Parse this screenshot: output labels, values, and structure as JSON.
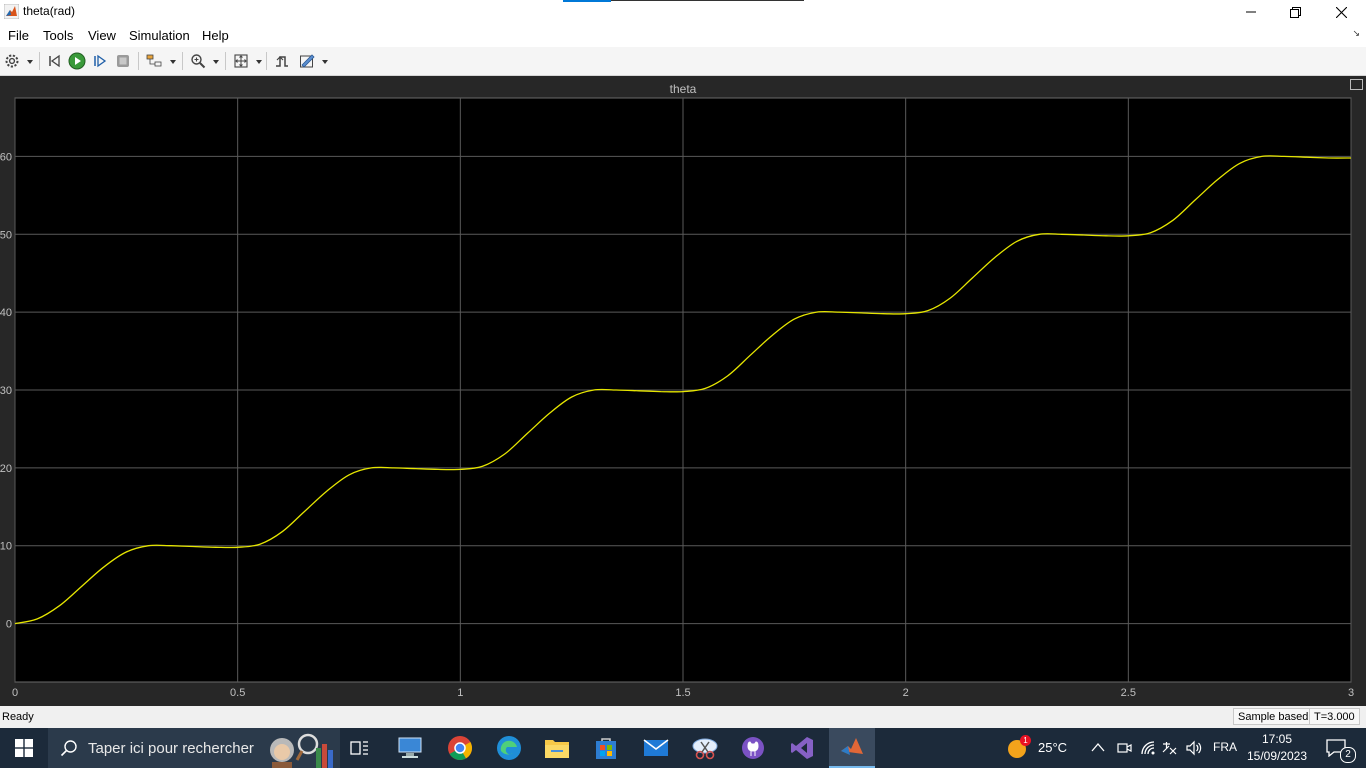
{
  "window": {
    "title": "theta(rad)"
  },
  "menu": {
    "items": [
      "File",
      "Tools",
      "View",
      "Simulation",
      "Help"
    ]
  },
  "chart_data": {
    "type": "line",
    "title": "theta",
    "xlabel": "",
    "ylabel": "",
    "xlim": [
      0,
      3
    ],
    "ylim": [
      -7.5,
      67.5
    ],
    "xticks": [
      0,
      0.5,
      1,
      1.5,
      2,
      2.5,
      3
    ],
    "xtick_labels": [
      "0",
      "0.5",
      "1",
      "1.5",
      "2",
      "2.5",
      "3"
    ],
    "yticks": [
      0,
      10,
      20,
      30,
      40,
      50,
      60
    ],
    "ytick_labels": [
      "0",
      "10",
      "20",
      "30",
      "40",
      "50",
      "60"
    ],
    "grid": true,
    "background": "#000000",
    "gridcolor": "#5a5a5a",
    "series": [
      {
        "color": "#e6e600",
        "x": [
          0,
          0.05,
          0.1,
          0.15,
          0.2,
          0.25,
          0.3,
          0.35,
          0.4,
          0.45,
          0.5,
          0.55,
          0.6,
          0.65,
          0.7,
          0.75,
          0.8,
          0.85,
          0.9,
          0.95,
          1.0,
          1.05,
          1.1,
          1.15,
          1.2,
          1.25,
          1.3,
          1.35,
          1.4,
          1.45,
          1.5,
          1.55,
          1.6,
          1.65,
          1.7,
          1.75,
          1.8,
          1.85,
          1.9,
          1.95,
          2.0,
          2.05,
          2.1,
          2.15,
          2.2,
          2.25,
          2.3,
          2.35,
          2.4,
          2.45,
          2.5,
          2.55,
          2.6,
          2.65,
          2.7,
          2.75,
          2.8,
          2.85,
          2.9,
          2.95,
          3.0
        ],
        "y": [
          0,
          0.6,
          2.3,
          4.8,
          7.3,
          9.2,
          10.0,
          10.0,
          9.9,
          9.8,
          9.8,
          10.2,
          11.8,
          14.4,
          17.0,
          19.1,
          20.0,
          20.0,
          19.9,
          19.8,
          19.8,
          20.2,
          21.8,
          24.4,
          27.0,
          29.1,
          30.0,
          30.0,
          29.9,
          29.8,
          29.8,
          30.2,
          31.8,
          34.4,
          37.0,
          39.1,
          40.0,
          40.0,
          39.9,
          39.8,
          39.8,
          40.2,
          41.8,
          44.4,
          47.0,
          49.1,
          50.0,
          50.0,
          49.9,
          49.8,
          49.8,
          50.2,
          51.8,
          54.4,
          57.0,
          59.1,
          60.0,
          60.0,
          59.9,
          59.8,
          59.8
        ]
      }
    ]
  },
  "status": {
    "text": "Ready",
    "mode": "Sample based",
    "time": "T=3.000"
  },
  "taskbar": {
    "search_placeholder": "Taper ici pour rechercher",
    "weather": "25°C",
    "weather_badge": "1",
    "language": "FRA",
    "time": "17:05",
    "date": "15/09/2023",
    "notifications": "2"
  },
  "colors": {
    "accent": "#0078d7",
    "plot_line": "#e6e600",
    "taskbar": "#1c2a3a"
  }
}
